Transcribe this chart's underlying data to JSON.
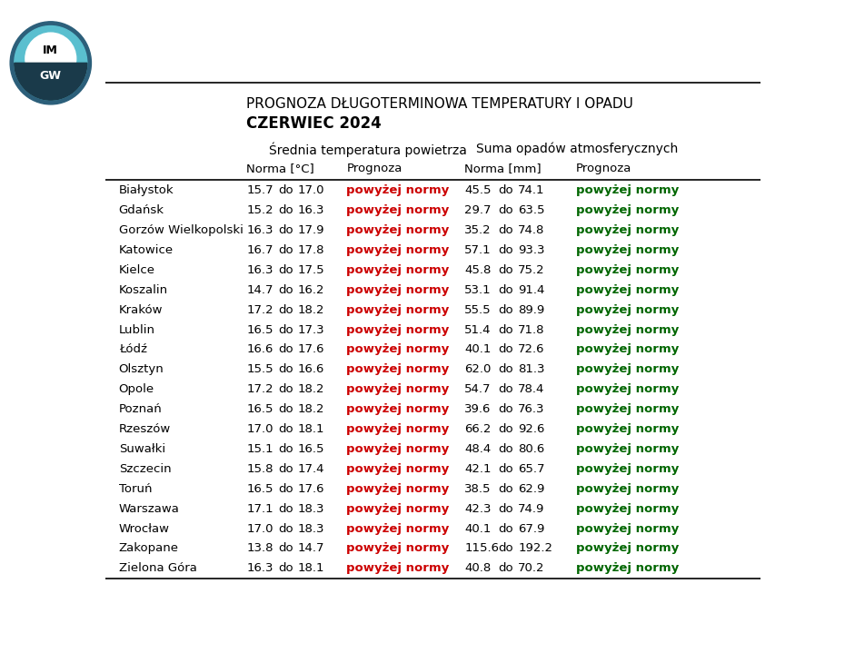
{
  "title_line1": "PROGNOZA DŁUGOTERMINOWA TEMPERATURY I OPADU",
  "title_line2": "CZERWIEC 2024",
  "header1": "Średnia temperatura powietrza",
  "header2": "Suma opadów atmosferycznych",
  "subheader_norma_temp": "Norma [°C]",
  "subheader_prognoza": "Prognoza",
  "subheader_norma_opad": "Norma [mm]",
  "subheader_prognoza2": "Prognoza",
  "cities": [
    "Białystok",
    "Gdańsk",
    "Gorzów Wielkopolski",
    "Katowice",
    "Kielce",
    "Koszalin",
    "Kraków",
    "Lublin",
    "Łódź",
    "Olsztyn",
    "Opole",
    "Poznań",
    "Rzeszów",
    "Suwałki",
    "Szczecin",
    "Toruń",
    "Warszawa",
    "Wrocław",
    "Zakopane",
    "Zielona Góra"
  ],
  "temp_norma_low": [
    15.7,
    15.2,
    16.3,
    16.7,
    16.3,
    14.7,
    17.2,
    16.5,
    16.6,
    15.5,
    17.2,
    16.5,
    17.0,
    15.1,
    15.8,
    16.5,
    17.1,
    17.0,
    13.8,
    16.3
  ],
  "temp_norma_high": [
    17.0,
    16.3,
    17.9,
    17.8,
    17.5,
    16.2,
    18.2,
    17.3,
    17.6,
    16.6,
    18.2,
    18.2,
    18.1,
    16.5,
    17.4,
    17.6,
    18.3,
    18.3,
    14.7,
    18.1
  ],
  "temp_prognoza": [
    "powyżej normy",
    "powyżej normy",
    "powyżej normy",
    "powyżej normy",
    "powyżej normy",
    "powyżej normy",
    "powyżej normy",
    "powyżej normy",
    "powyżej normy",
    "powyżej normy",
    "powyżej normy",
    "powyżej normy",
    "powyżej normy",
    "powyżej normy",
    "powyżej normy",
    "powyżej normy",
    "powyżej normy",
    "powyżej normy",
    "powyżej normy",
    "powyżej normy"
  ],
  "opad_norma_low": [
    45.5,
    29.7,
    35.2,
    57.1,
    45.8,
    53.1,
    55.5,
    51.4,
    40.1,
    62.0,
    54.7,
    39.6,
    66.2,
    48.4,
    42.1,
    38.5,
    42.3,
    40.1,
    115.6,
    40.8
  ],
  "opad_norma_high": [
    74.1,
    63.5,
    74.8,
    93.3,
    75.2,
    91.4,
    89.9,
    71.8,
    72.6,
    81.3,
    78.4,
    76.3,
    92.6,
    80.6,
    65.7,
    62.9,
    74.9,
    67.9,
    192.2,
    70.2
  ],
  "opad_prognoza": [
    "powyżej normy",
    "powyżej normy",
    "powyżej normy",
    "powyżej normy",
    "powyżej normy",
    "powyżej normy",
    "powyżej normy",
    "powyżej normy",
    "powyżej normy",
    "powyżej normy",
    "powyżej normy",
    "powyżej normy",
    "powyżej normy",
    "powyżej normy",
    "powyżej normy",
    "powyżej normy",
    "powyżej normy",
    "powyżej normy",
    "powyżej normy",
    "powyżej normy"
  ],
  "temp_color": "#cc0000",
  "opad_color": "#006600",
  "text_color": "#000000",
  "bg_color": "#ffffff",
  "line_color": "#000000",
  "col_city": 0.02,
  "col_temp_low": 0.215,
  "col_do1": 0.263,
  "col_temp_high": 0.293,
  "col_temp_prog": 0.368,
  "col_opad_low": 0.548,
  "col_do2": 0.6,
  "col_opad_high": 0.63,
  "col_opad_prog": 0.718
}
